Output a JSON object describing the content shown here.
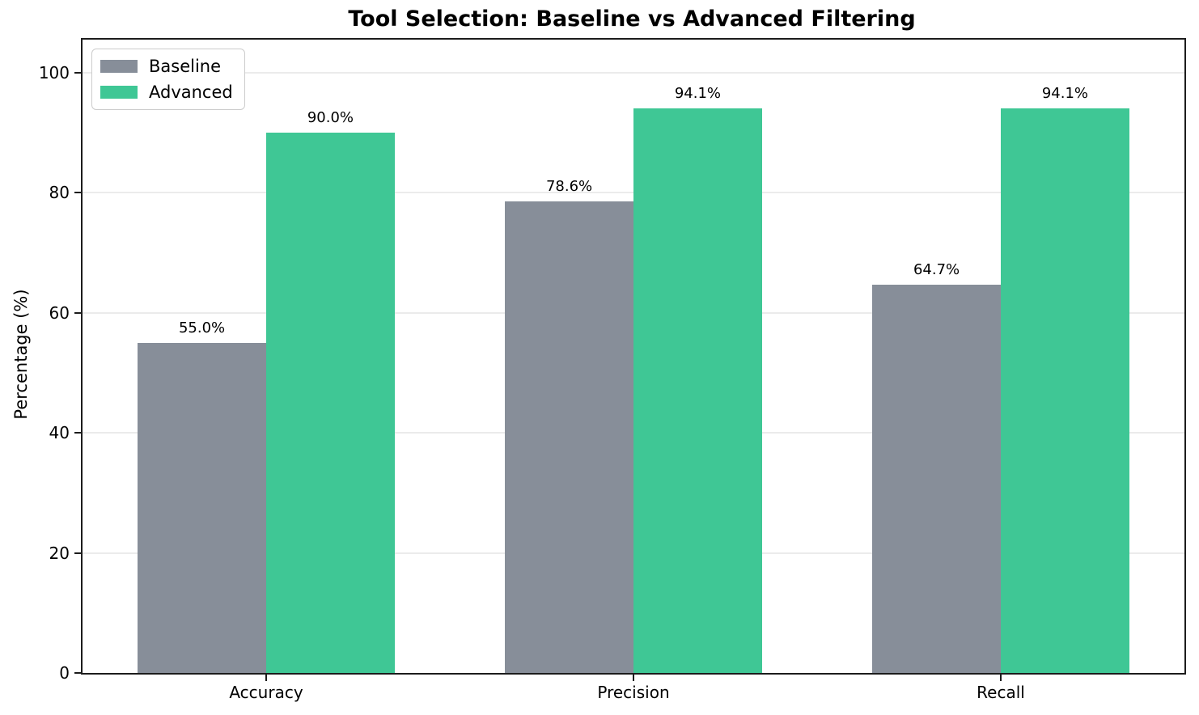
{
  "chart_data": {
    "type": "bar",
    "title": "Tool Selection: Baseline vs Advanced Filtering",
    "xlabel": "",
    "ylabel": "Percentage (%)",
    "categories": [
      "Accuracy",
      "Precision",
      "Recall"
    ],
    "series": [
      {
        "name": "Baseline",
        "color": "#878e99",
        "values": [
          55.0,
          78.6,
          64.7
        ],
        "data_labels": [
          "55.0%",
          "78.6%",
          "64.7%"
        ]
      },
      {
        "name": "Advanced",
        "color": "#3fc795",
        "values": [
          90.0,
          94.1,
          94.1
        ],
        "data_labels": [
          "90.0%",
          "94.1%",
          "94.1%"
        ]
      }
    ],
    "ylim": [
      0,
      105.5
    ],
    "yticks": [
      0,
      20,
      40,
      60,
      80,
      100
    ],
    "xlim": [
      -0.5,
      2.5
    ],
    "bar_width": 0.35,
    "grid": "horizontal",
    "legend_position": "upper-left",
    "colors": {
      "grid": "#ebebeb",
      "spine": "#1c1c1c",
      "background": "#ffffff"
    }
  }
}
